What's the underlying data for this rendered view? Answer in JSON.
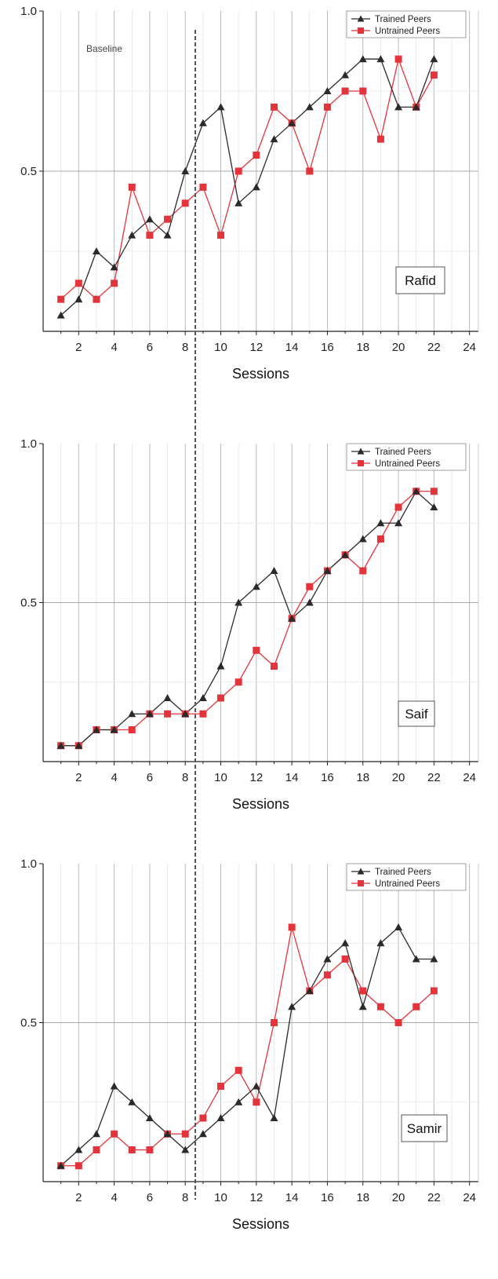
{
  "figure": {
    "baseline_label": "Baseline",
    "colors": {
      "trained": "#2a2a2a",
      "untrained": "#e2343a",
      "grid": "#c4c4c4",
      "phase_line": "#555555"
    }
  },
  "chart_data": [
    {
      "type": "line",
      "participant": "Rafid",
      "xlabel": "Sessions",
      "ylabel": "",
      "xlim": [
        0,
        24.5
      ],
      "ylim": [
        0,
        1.0
      ],
      "x_ticks": [
        2,
        4,
        6,
        8,
        10,
        12,
        14,
        16,
        18,
        20,
        22,
        24
      ],
      "y_ticks": [
        0.5,
        1.0
      ],
      "y_tick_labels": [
        "0.5",
        "1.0"
      ],
      "phase_change_after_session": 8.5,
      "legend": "top-right",
      "grid": true,
      "x": [
        1,
        2,
        3,
        4,
        5,
        6,
        7,
        8,
        9,
        10,
        11,
        12,
        13,
        14,
        15,
        16,
        17,
        18,
        19,
        20,
        21,
        22
      ],
      "series": [
        {
          "name": "Trained Peers",
          "marker": "triangle",
          "values": [
            0.05,
            0.1,
            0.25,
            0.2,
            0.3,
            0.35,
            0.3,
            0.5,
            0.65,
            0.7,
            0.4,
            0.45,
            0.6,
            0.65,
            0.7,
            0.75,
            0.8,
            0.85,
            0.85,
            0.7,
            0.7,
            0.85
          ]
        },
        {
          "name": "Untrained Peers",
          "marker": "square",
          "values": [
            0.1,
            0.15,
            0.1,
            0.15,
            0.45,
            0.3,
            0.35,
            0.4,
            0.45,
            0.3,
            0.5,
            0.55,
            0.7,
            0.65,
            0.5,
            0.7,
            0.75,
            0.75,
            0.6,
            0.85,
            0.7,
            0.8
          ]
        }
      ]
    },
    {
      "type": "line",
      "participant": "Saif",
      "xlabel": "Sessions",
      "ylabel": "",
      "xlim": [
        0,
        24.5
      ],
      "ylim": [
        0,
        1.0
      ],
      "x_ticks": [
        2,
        4,
        6,
        8,
        10,
        12,
        14,
        16,
        18,
        20,
        22,
        24
      ],
      "y_ticks": [
        0.5,
        1.0
      ],
      "y_tick_labels": [
        "0.5",
        "1.0"
      ],
      "phase_change_after_session": 8.5,
      "legend": "top-right",
      "grid": true,
      "x": [
        1,
        2,
        3,
        4,
        5,
        6,
        7,
        8,
        9,
        10,
        11,
        12,
        13,
        14,
        15,
        16,
        17,
        18,
        19,
        20,
        21,
        22
      ],
      "series": [
        {
          "name": "Trained Peers",
          "marker": "triangle",
          "values": [
            0.05,
            0.05,
            0.1,
            0.1,
            0.15,
            0.15,
            0.2,
            0.15,
            0.2,
            0.3,
            0.5,
            0.55,
            0.6,
            0.45,
            0.5,
            0.6,
            0.65,
            0.7,
            0.75,
            0.75,
            0.85,
            0.8
          ]
        },
        {
          "name": "Untrained Peers",
          "marker": "square",
          "values": [
            0.05,
            0.05,
            0.1,
            0.1,
            0.1,
            0.15,
            0.15,
            0.15,
            0.15,
            0.2,
            0.25,
            0.35,
            0.3,
            0.45,
            0.55,
            0.6,
            0.65,
            0.6,
            0.7,
            0.8,
            0.85,
            0.85
          ]
        }
      ]
    },
    {
      "type": "line",
      "participant": "Samir",
      "xlabel": "Sessions",
      "ylabel": "",
      "xlim": [
        0,
        24.5
      ],
      "ylim": [
        0,
        1.0
      ],
      "x_ticks": [
        2,
        4,
        6,
        8,
        10,
        12,
        14,
        16,
        18,
        20,
        22,
        24
      ],
      "y_ticks": [
        0.5,
        1.0
      ],
      "y_tick_labels": [
        "0.5",
        "1.0"
      ],
      "phase_change_after_session": 8.5,
      "legend": "top-right",
      "grid": true,
      "x": [
        1,
        2,
        3,
        4,
        5,
        6,
        7,
        8,
        9,
        10,
        11,
        12,
        13,
        14,
        15,
        16,
        17,
        18,
        19,
        20,
        21,
        22
      ],
      "series": [
        {
          "name": "Trained Peers",
          "marker": "triangle",
          "values": [
            0.05,
            0.1,
            0.15,
            0.3,
            0.25,
            0.2,
            0.15,
            0.1,
            0.15,
            0.2,
            0.25,
            0.3,
            0.2,
            0.55,
            0.6,
            0.7,
            0.75,
            0.55,
            0.75,
            0.8,
            0.7,
            0.7
          ]
        },
        {
          "name": "Untrained Peers",
          "marker": "square",
          "values": [
            0.05,
            0.05,
            0.1,
            0.15,
            0.1,
            0.1,
            0.15,
            0.15,
            0.2,
            0.3,
            0.35,
            0.25,
            0.5,
            0.8,
            0.6,
            0.65,
            0.7,
            0.6,
            0.55,
            0.5,
            0.55,
            0.6
          ]
        }
      ]
    }
  ]
}
